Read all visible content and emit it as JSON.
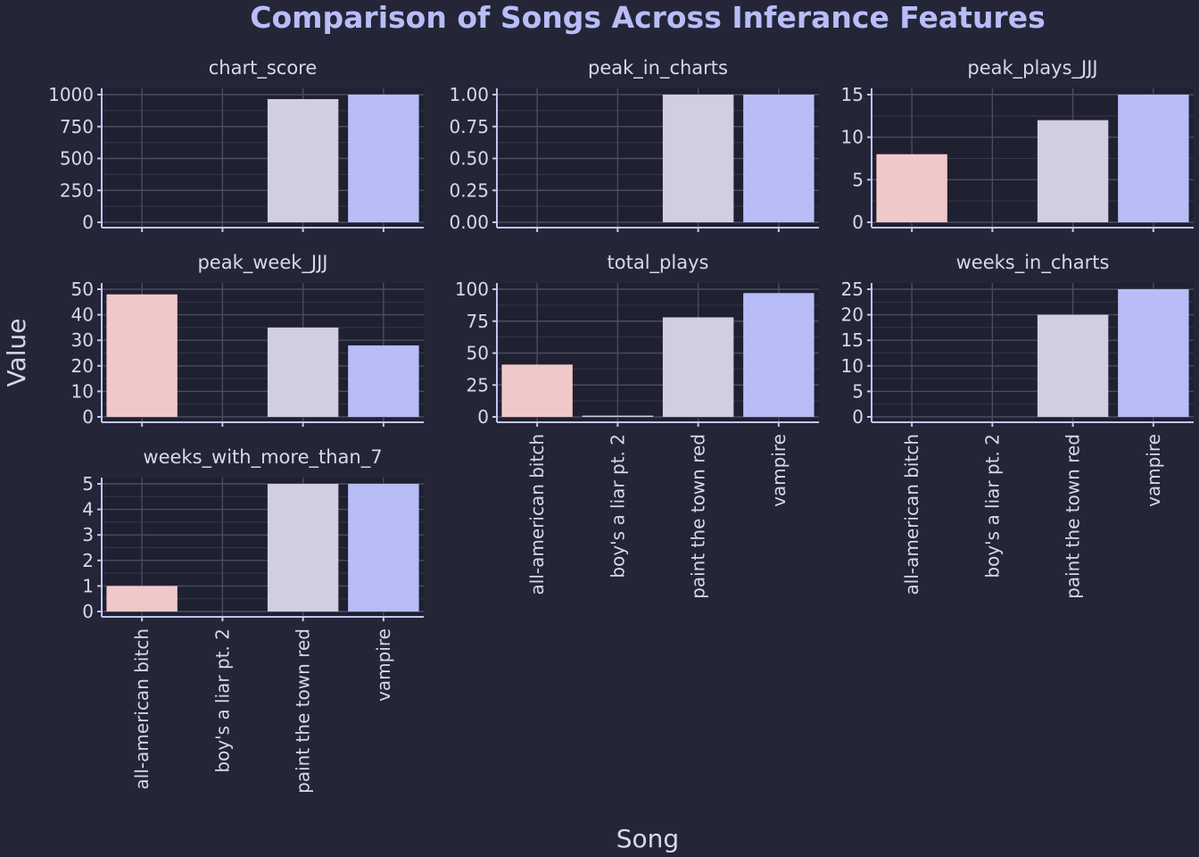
{
  "chart_data": {
    "type": "bar",
    "title": "Comparison of Songs Across Inferance Features",
    "xlabel": "Song",
    "ylabel": "Value",
    "categories": [
      "all-american bitch",
      "boy's a liar pt. 2",
      "paint the town red",
      "vampire"
    ],
    "grid": true,
    "legend": "none",
    "colors": {
      "background": "#242638",
      "panel": "#1f2030",
      "text": "#d8d8ec",
      "title": "#b8bdf8",
      "grid": "#4a4c62",
      "axis": "#c0c4f0",
      "bars": [
        "#f1c8ca",
        "#d2cee1",
        "#d2cee1",
        "#b8bdf8"
      ]
    },
    "panels": [
      {
        "name": "chart_score",
        "values": [
          0,
          0,
          965,
          1000
        ],
        "ylim": [
          0,
          1000
        ],
        "yticks": [
          "0",
          "250",
          "500",
          "750",
          "1000"
        ]
      },
      {
        "name": "peak_in_charts",
        "values": [
          0,
          0,
          1,
          1
        ],
        "ylim": [
          0,
          1
        ],
        "yticks": [
          "0.00",
          "0.25",
          "0.50",
          "0.75",
          "1.00"
        ]
      },
      {
        "name": "peak_plays_JJJ",
        "values": [
          8,
          0,
          12,
          15
        ],
        "ylim": [
          0,
          15
        ],
        "yticks": [
          "0",
          "5",
          "10",
          "15"
        ]
      },
      {
        "name": "peak_week_JJJ",
        "values": [
          48,
          0,
          35,
          28
        ],
        "ylim": [
          0,
          50
        ],
        "yticks": [
          "0",
          "10",
          "20",
          "30",
          "40",
          "50"
        ]
      },
      {
        "name": "total_plays",
        "values": [
          41,
          1,
          78,
          97
        ],
        "ylim": [
          0,
          100
        ],
        "yticks": [
          "0",
          "25",
          "50",
          "75",
          "100"
        ]
      },
      {
        "name": "weeks_in_charts",
        "values": [
          0,
          0,
          20,
          25
        ],
        "ylim": [
          0,
          25
        ],
        "yticks": [
          "0",
          "5",
          "10",
          "15",
          "20",
          "25"
        ]
      },
      {
        "name": "weeks_with_more_than_7",
        "values": [
          1,
          0,
          5,
          5
        ],
        "ylim": [
          0,
          5
        ],
        "yticks": [
          "0",
          "1",
          "2",
          "3",
          "4",
          "5"
        ]
      }
    ]
  }
}
